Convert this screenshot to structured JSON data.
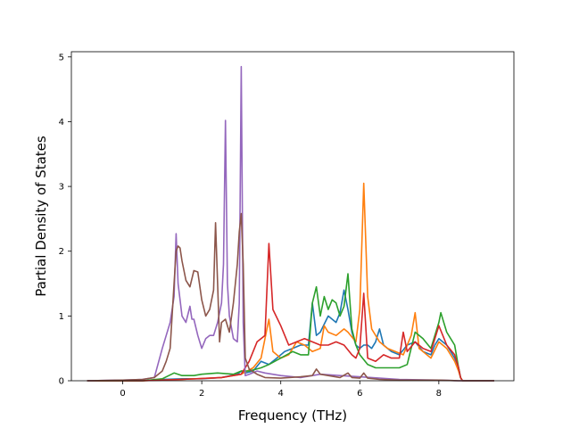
{
  "chart_data": {
    "type": "line",
    "title": "",
    "xlabel": "Frequency (THz)",
    "ylabel": "Partial Density of States",
    "xlim": [
      -1.3,
      9.9
    ],
    "ylim": [
      0,
      5.08
    ],
    "xticks": [
      0,
      2,
      4,
      6,
      8
    ],
    "yticks": [
      0,
      1,
      2,
      3,
      4,
      5
    ],
    "grid": false,
    "legend": "none",
    "series": [
      {
        "color": "#1f77b4",
        "x": [
          -0.9,
          0.5,
          1.0,
          1.5,
          2.0,
          2.5,
          2.9,
          3.0,
          3.1,
          3.3,
          3.5,
          3.7,
          3.9,
          4.1,
          4.3,
          4.5,
          4.7,
          4.8,
          4.9,
          5.0,
          5.2,
          5.4,
          5.5,
          5.6,
          5.7,
          5.8,
          5.9,
          6.0,
          6.1,
          6.2,
          6.3,
          6.4,
          6.5,
          6.6,
          6.8,
          7.0,
          7.2,
          7.4,
          7.6,
          7.8,
          7.9,
          8.0,
          8.2,
          8.4,
          8.5,
          8.55,
          8.6,
          9.4
        ],
        "y": [
          0,
          0,
          0.02,
          0.03,
          0.03,
          0.05,
          0.1,
          0.15,
          0.12,
          0.15,
          0.3,
          0.25,
          0.35,
          0.45,
          0.5,
          0.55,
          0.55,
          1.2,
          0.7,
          0.75,
          1.0,
          0.9,
          1.05,
          1.4,
          1.1,
          0.75,
          0.55,
          0.5,
          0.55,
          0.55,
          0.5,
          0.6,
          0.8,
          0.55,
          0.45,
          0.4,
          0.55,
          0.6,
          0.45,
          0.4,
          0.55,
          0.65,
          0.55,
          0.35,
          0.2,
          0.05,
          0,
          0
        ]
      },
      {
        "color": "#ff7f0e",
        "x": [
          -0.9,
          0.5,
          1.5,
          2.5,
          3.0,
          3.3,
          3.5,
          3.7,
          3.8,
          4.0,
          4.2,
          4.4,
          4.6,
          4.8,
          5.0,
          5.1,
          5.2,
          5.4,
          5.6,
          5.7,
          5.9,
          6.0,
          6.1,
          6.2,
          6.3,
          6.5,
          6.7,
          6.9,
          7.1,
          7.3,
          7.4,
          7.5,
          7.6,
          7.8,
          8.0,
          8.2,
          8.4,
          8.5,
          8.55,
          8.6,
          9.4
        ],
        "y": [
          0,
          0,
          0.02,
          0.05,
          0.1,
          0.2,
          0.35,
          0.95,
          0.45,
          0.35,
          0.4,
          0.6,
          0.55,
          0.45,
          0.5,
          0.85,
          0.75,
          0.7,
          0.8,
          0.75,
          0.6,
          1.1,
          3.05,
          1.3,
          0.8,
          0.6,
          0.5,
          0.45,
          0.4,
          0.7,
          1.05,
          0.5,
          0.45,
          0.35,
          0.6,
          0.5,
          0.3,
          0.15,
          0.05,
          0,
          0
        ]
      },
      {
        "color": "#2ca02c",
        "x": [
          -0.9,
          0.5,
          1.0,
          1.3,
          1.5,
          1.8,
          2.0,
          2.4,
          2.8,
          3.0,
          3.2,
          3.5,
          3.7,
          4.0,
          4.3,
          4.5,
          4.7,
          4.8,
          4.9,
          5.0,
          5.1,
          5.2,
          5.3,
          5.4,
          5.5,
          5.6,
          5.7,
          5.8,
          5.9,
          6.0,
          6.2,
          6.4,
          6.6,
          6.8,
          7.0,
          7.2,
          7.4,
          7.6,
          7.8,
          8.0,
          8.05,
          8.2,
          8.4,
          8.5,
          8.55,
          8.6,
          9.4
        ],
        "y": [
          0,
          0,
          0.03,
          0.12,
          0.08,
          0.08,
          0.1,
          0.12,
          0.1,
          0.15,
          0.15,
          0.2,
          0.25,
          0.35,
          0.45,
          0.4,
          0.4,
          1.2,
          1.45,
          1.0,
          1.3,
          1.1,
          1.25,
          1.2,
          1.0,
          1.15,
          1.65,
          0.8,
          0.55,
          0.4,
          0.25,
          0.2,
          0.2,
          0.2,
          0.2,
          0.25,
          0.75,
          0.65,
          0.5,
          0.9,
          1.05,
          0.75,
          0.55,
          0.2,
          0.05,
          0,
          0
        ]
      },
      {
        "color": "#d62728",
        "x": [
          -0.9,
          0.5,
          1.5,
          2.5,
          3.0,
          3.2,
          3.4,
          3.6,
          3.7,
          3.8,
          4.0,
          4.2,
          4.4,
          4.6,
          4.8,
          5.0,
          5.2,
          5.4,
          5.6,
          5.8,
          5.9,
          6.0,
          6.1,
          6.2,
          6.4,
          6.6,
          6.8,
          7.0,
          7.1,
          7.2,
          7.4,
          7.6,
          7.8,
          8.0,
          8.2,
          8.4,
          8.5,
          8.55,
          8.6,
          9.4
        ],
        "y": [
          0,
          0,
          0.02,
          0.05,
          0.1,
          0.3,
          0.6,
          0.7,
          2.12,
          1.1,
          0.85,
          0.55,
          0.6,
          0.65,
          0.6,
          0.55,
          0.55,
          0.6,
          0.55,
          0.4,
          0.35,
          0.5,
          1.35,
          0.35,
          0.3,
          0.4,
          0.35,
          0.35,
          0.75,
          0.45,
          0.6,
          0.5,
          0.45,
          0.85,
          0.55,
          0.4,
          0.2,
          0.05,
          0,
          0
        ]
      },
      {
        "color": "#9467bd",
        "x": [
          -0.9,
          0.0,
          0.5,
          0.8,
          1.0,
          1.1,
          1.2,
          1.3,
          1.35,
          1.4,
          1.5,
          1.6,
          1.7,
          1.75,
          1.8,
          1.9,
          2.0,
          2.1,
          2.2,
          2.3,
          2.4,
          2.5,
          2.55,
          2.6,
          2.65,
          2.7,
          2.8,
          2.9,
          2.95,
          3.0,
          3.05,
          3.1,
          3.2,
          3.4,
          3.6,
          4.0,
          4.5,
          5.0,
          5.5,
          6.0,
          6.5,
          7.0,
          8.0,
          8.5,
          9.4
        ],
        "y": [
          0,
          0.01,
          0.02,
          0.05,
          0.5,
          0.7,
          0.9,
          1.3,
          2.27,
          1.5,
          1.0,
          0.9,
          1.15,
          0.95,
          0.95,
          0.7,
          0.5,
          0.65,
          0.7,
          0.7,
          0.9,
          1.2,
          1.8,
          4.02,
          1.5,
          1.0,
          0.65,
          0.6,
          1.2,
          4.85,
          0.9,
          0.08,
          0.1,
          0.15,
          0.12,
          0.08,
          0.05,
          0.1,
          0.08,
          0.06,
          0.04,
          0.02,
          0.01,
          0,
          0
        ]
      },
      {
        "color": "#8c564b",
        "x": [
          -0.9,
          0.0,
          0.5,
          0.8,
          1.0,
          1.1,
          1.2,
          1.3,
          1.35,
          1.4,
          1.45,
          1.5,
          1.6,
          1.7,
          1.8,
          1.9,
          2.0,
          2.1,
          2.2,
          2.3,
          2.35,
          2.4,
          2.45,
          2.5,
          2.6,
          2.7,
          2.8,
          2.9,
          2.95,
          3.0,
          3.05,
          3.1,
          3.2,
          3.4,
          3.6,
          4.0,
          4.5,
          4.8,
          4.9,
          5.0,
          5.5,
          5.7,
          5.8,
          6.0,
          6.1,
          6.2,
          6.5,
          7.0,
          8.0,
          8.5,
          9.4
        ],
        "y": [
          0,
          0.01,
          0.02,
          0.05,
          0.15,
          0.3,
          0.5,
          1.5,
          2.0,
          2.08,
          2.05,
          1.85,
          1.55,
          1.45,
          1.7,
          1.68,
          1.25,
          1.0,
          1.1,
          1.4,
          2.44,
          1.5,
          0.6,
          0.9,
          0.95,
          0.75,
          1.2,
          1.8,
          2.3,
          2.58,
          1.8,
          0.35,
          0.18,
          0.1,
          0.05,
          0.04,
          0.06,
          0.08,
          0.18,
          0.1,
          0.05,
          0.12,
          0.05,
          0.04,
          0.12,
          0.04,
          0.02,
          0.01,
          0.01,
          0,
          0
        ]
      }
    ]
  }
}
